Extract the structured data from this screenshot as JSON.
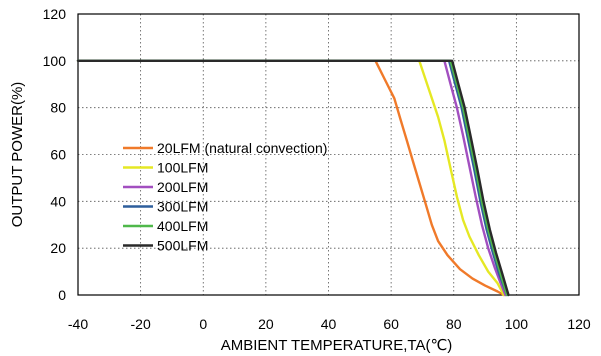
{
  "chart_data": {
    "type": "line",
    "title": "",
    "xlabel": "AMBIENT TEMPERATURE,TA(℃)",
    "ylabel": "OUTPUT POWER(%)",
    "xlim": [
      -40,
      120
    ],
    "ylim": [
      0,
      120
    ],
    "xticks": [
      -40,
      -20,
      0,
      20,
      40,
      60,
      80,
      100,
      120
    ],
    "yticks": [
      0,
      20,
      40,
      60,
      80,
      100,
      120
    ],
    "grid": "dotted, both axes",
    "legend_position": "left-center, inside plot",
    "series": [
      {
        "name": "20LFM (natural convection)",
        "color": "#F07A2A",
        "points": [
          [
            -40,
            100
          ],
          [
            55,
            100
          ],
          [
            58,
            92
          ],
          [
            61,
            84
          ],
          [
            63,
            75
          ],
          [
            65,
            66
          ],
          [
            67,
            57
          ],
          [
            69,
            48
          ],
          [
            71,
            39
          ],
          [
            73,
            30
          ],
          [
            75,
            23
          ],
          [
            78,
            17
          ],
          [
            82,
            11
          ],
          [
            86,
            7
          ],
          [
            90,
            4
          ],
          [
            94,
            1.5
          ],
          [
            96,
            0
          ]
        ]
      },
      {
        "name": "100LFM",
        "color": "#E5E824",
        "points": [
          [
            -40,
            100
          ],
          [
            69,
            100
          ],
          [
            72,
            88
          ],
          [
            75,
            76
          ],
          [
            77,
            66
          ],
          [
            79,
            54
          ],
          [
            81,
            42
          ],
          [
            83,
            32
          ],
          [
            85,
            25
          ],
          [
            88,
            17
          ],
          [
            91,
            10
          ],
          [
            94,
            5
          ],
          [
            96,
            0
          ]
        ]
      },
      {
        "name": "200LFM",
        "color": "#A24FC0",
        "points": [
          [
            -40,
            100
          ],
          [
            77,
            100
          ],
          [
            79,
            90
          ],
          [
            81,
            80
          ],
          [
            83,
            68
          ],
          [
            85,
            55
          ],
          [
            87,
            42
          ],
          [
            89,
            30
          ],
          [
            91,
            20
          ],
          [
            93,
            12
          ],
          [
            95,
            5
          ],
          [
            96.5,
            0
          ]
        ]
      },
      {
        "name": "300LFM",
        "color": "#2E5E9C",
        "points": [
          [
            -40,
            100
          ],
          [
            78.5,
            100
          ],
          [
            80.5,
            90
          ],
          [
            82.5,
            80
          ],
          [
            84.5,
            67
          ],
          [
            86.5,
            54
          ],
          [
            88.5,
            40
          ],
          [
            90.5,
            28
          ],
          [
            92.5,
            18
          ],
          [
            94.5,
            9
          ],
          [
            97,
            0
          ]
        ]
      },
      {
        "name": "400LFM",
        "color": "#4FB84A",
        "points": [
          [
            -40,
            100
          ],
          [
            79,
            100
          ],
          [
            81,
            90
          ],
          [
            83,
            80
          ],
          [
            85,
            67
          ],
          [
            87,
            54
          ],
          [
            89,
            40
          ],
          [
            91,
            28
          ],
          [
            93,
            18
          ],
          [
            95,
            9
          ],
          [
            97,
            0
          ]
        ]
      },
      {
        "name": "500LFM",
        "color": "#2A2A2A",
        "points": [
          [
            -40,
            100
          ],
          [
            79.5,
            100
          ],
          [
            81.5,
            90
          ],
          [
            83.5,
            80
          ],
          [
            85.5,
            67
          ],
          [
            87.5,
            54
          ],
          [
            89.5,
            40
          ],
          [
            91.5,
            28
          ],
          [
            93.5,
            18
          ],
          [
            95.5,
            9
          ],
          [
            97.5,
            0
          ]
        ]
      }
    ]
  }
}
